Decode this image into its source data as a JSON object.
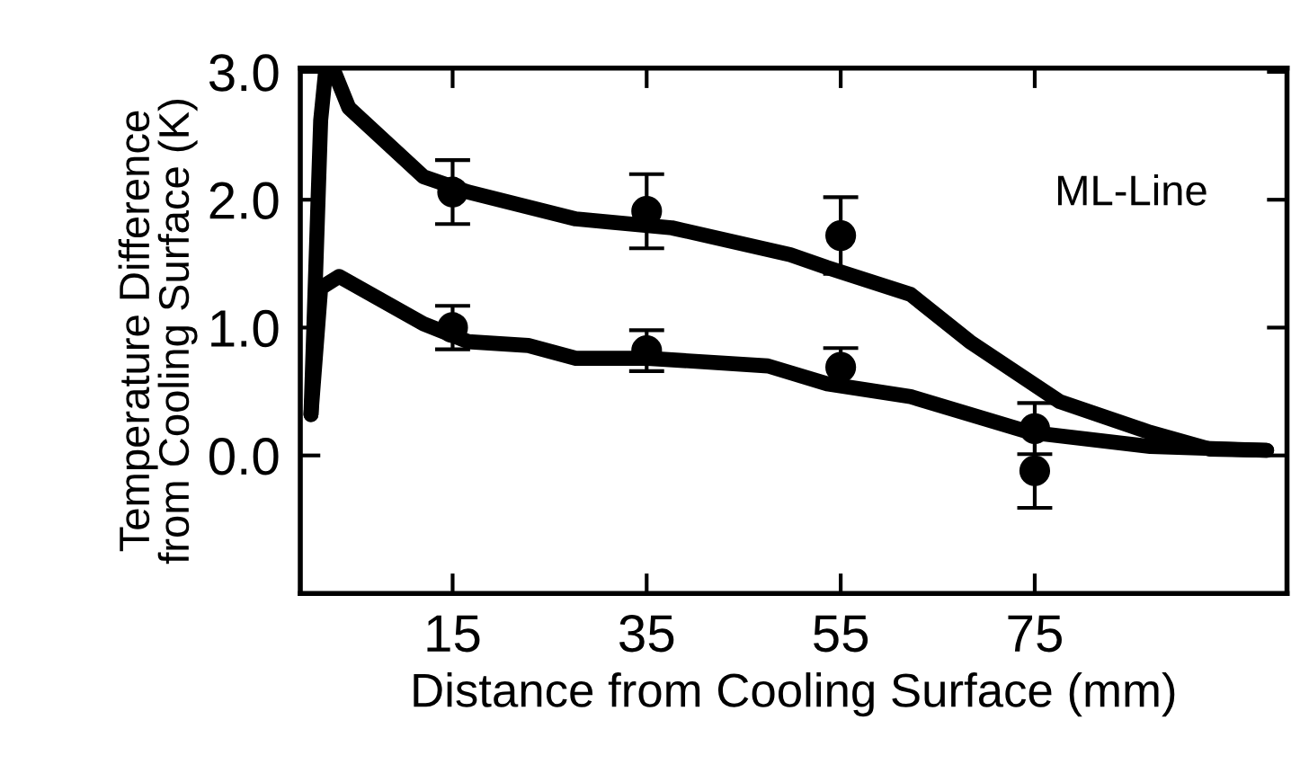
{
  "chart_data": {
    "type": "line",
    "xlabel": "Distance from Cooling Surface (mm)",
    "ylabel": "Temperature Difference\nfrom Cooling Surface (K)",
    "annotations": [
      "ML-Line"
    ],
    "xlim": [
      -0.7,
      101
    ],
    "xticks": [
      15,
      35,
      55,
      75
    ],
    "ylim": [
      -1.08,
      3.03
    ],
    "yticks": [
      {
        "value": 0,
        "label": "0.0"
      },
      {
        "value": 1,
        "label": "1.0"
      },
      {
        "value": 2,
        "label": "2.0"
      },
      {
        "value": 3,
        "label": "3.0"
      }
    ],
    "grid": false,
    "series": [
      {
        "color": "#000000",
        "marker": "none",
        "x": [
          0.4,
          1.4,
          1.9,
          2.8,
          4.3,
          12,
          16.6,
          27.7,
          37.6,
          49.8,
          53.6,
          62.2,
          68.3,
          77.6,
          86.9,
          93,
          98.9
        ],
        "values": [
          0.32,
          2.62,
          3.0,
          3.0,
          2.72,
          2.18,
          2.06,
          1.85,
          1.78,
          1.57,
          1.47,
          1.26,
          0.89,
          0.42,
          0.18,
          0.05,
          0.04
        ]
      },
      {
        "color": "#000000",
        "marker": "none",
        "x": [
          0.4,
          1.4,
          3.3,
          12,
          16.6,
          22.8,
          27.7,
          35.1,
          47.5,
          53.6,
          62.2,
          74.5,
          86.9,
          98.9
        ],
        "values": [
          0.32,
          1.31,
          1.4,
          1.03,
          0.89,
          0.86,
          0.76,
          0.76,
          0.7,
          0.56,
          0.46,
          0.18,
          0.07,
          0.04
        ]
      },
      {
        "type": "scatter",
        "color": "#000000",
        "marker": "circle",
        "x": [
          15,
          35,
          55,
          75
        ],
        "values": [
          2.06,
          1.91,
          1.72,
          0.21
        ],
        "errors": [
          0.25,
          0.29,
          0.3,
          0.2
        ]
      },
      {
        "type": "scatter",
        "color": "#000000",
        "marker": "circle",
        "x": [
          15,
          35,
          55,
          75
        ],
        "values": [
          1.0,
          0.82,
          0.69,
          -0.12
        ],
        "errors": [
          0.17,
          0.16,
          0.15,
          0.29
        ]
      }
    ]
  }
}
